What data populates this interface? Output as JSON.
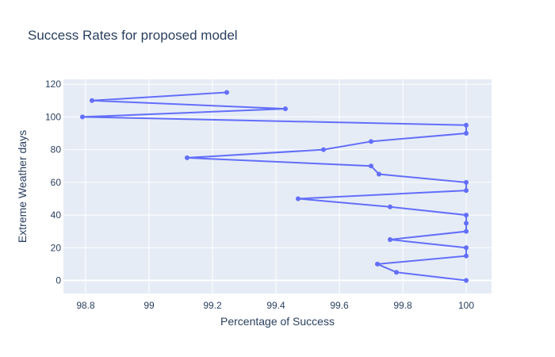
{
  "chart_data": {
    "type": "line",
    "title": "Success Rates for proposed model",
    "xlabel": "Percentage of Success",
    "ylabel": "Extreme Weather days",
    "xlim": [
      98.73,
      100.08
    ],
    "ylim": [
      -8,
      123
    ],
    "xticks": [
      98.8,
      99,
      99.2,
      99.4,
      99.6,
      99.8,
      100
    ],
    "xtick_labels": [
      "98.8",
      "99",
      "99.2",
      "99.4",
      "99.6",
      "99.8",
      "100"
    ],
    "yticks": [
      0,
      20,
      40,
      60,
      80,
      100,
      120
    ],
    "ytick_labels": [
      "0",
      "20",
      "40",
      "60",
      "80",
      "100",
      "120"
    ],
    "grid": true,
    "colors": {
      "line": "#636efa",
      "plot_bg": "#e5ecf6",
      "grid": "#ffffff",
      "text": "#2a3f5f"
    },
    "series": [
      {
        "x": [
          100,
          99.78,
          99.72,
          100,
          100,
          99.76,
          100,
          100,
          100,
          99.76,
          99.47,
          100,
          100,
          99.725,
          99.7,
          99.12,
          99.55,
          99.7,
          100,
          100,
          98.79,
          99.43,
          98.82,
          99.245
        ],
        "y": [
          0,
          5,
          10,
          15,
          20,
          25,
          30,
          35,
          40,
          45,
          50,
          55,
          60,
          65,
          70,
          75,
          80,
          85,
          90,
          95,
          100,
          105,
          110,
          115
        ]
      }
    ]
  }
}
